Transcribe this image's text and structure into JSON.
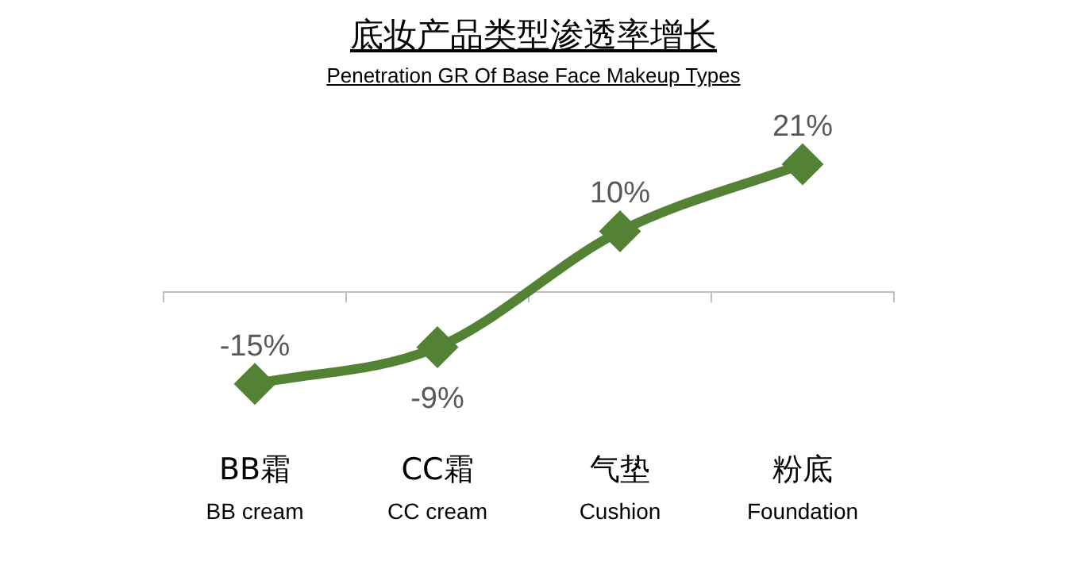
{
  "chart_data": {
    "type": "line",
    "title": "底妆产品类型渗透率增长",
    "subtitle": "Penetration GR Of Base Face Makeup Types",
    "categories": [
      "BB霜\nBB cream",
      "CC霜\nCC cream",
      "气垫\nCushion",
      "粉底\nFoundation"
    ],
    "series": [
      {
        "color": "#548235",
        "values": [
          -15,
          -9,
          10,
          21
        ],
        "value_labels": [
          "-15%",
          "-9%",
          "10%",
          "21%"
        ]
      }
    ],
    "marker": "diamond",
    "grid": false,
    "legend": false
  }
}
